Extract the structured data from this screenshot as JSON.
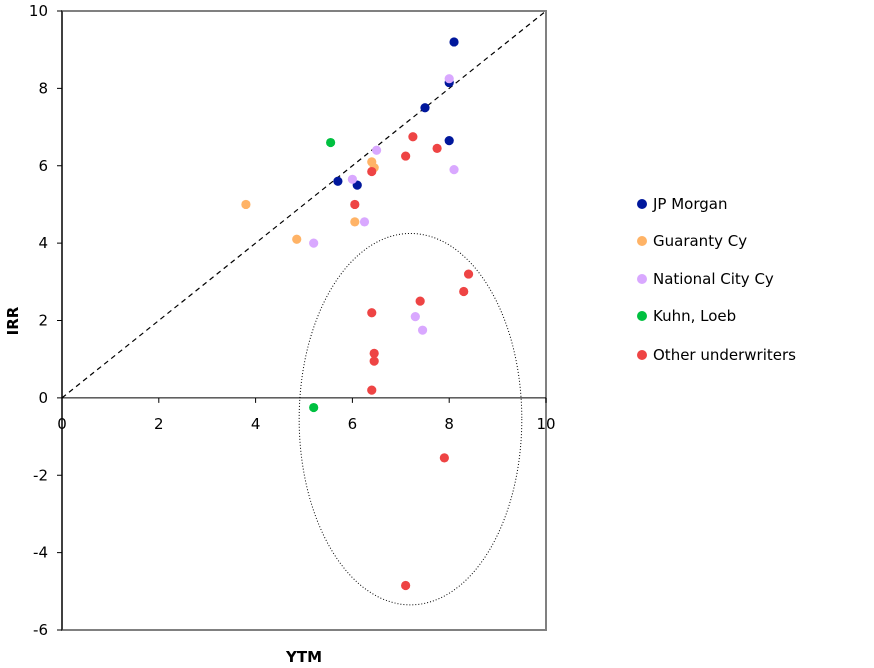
{
  "chart_data": {
    "type": "scatter",
    "xlabel": "YTM",
    "ylabel": "IRR",
    "xlim": [
      0,
      10
    ],
    "ylim": [
      -6,
      10
    ],
    "xticks": [
      "0",
      "2",
      "4",
      "6",
      "8",
      "10"
    ],
    "yticks": [
      "-6",
      "-4",
      "-2",
      "0",
      "2",
      "4",
      "6",
      "8",
      "10"
    ],
    "grid": false,
    "legend_position": "right",
    "reference_line": {
      "style": "dashed",
      "from": [
        0,
        0
      ],
      "to": [
        10,
        10
      ]
    },
    "highlight_ellipse": {
      "style": "dotted",
      "center": [
        7.2,
        -0.55
      ],
      "radius_x": 2.3,
      "radius_y": 4.8
    },
    "series": [
      {
        "name": "JP Morgan",
        "color": "#00179C",
        "points": [
          [
            8.1,
            9.2
          ],
          [
            8.0,
            8.15
          ],
          [
            7.5,
            7.5
          ],
          [
            8.0,
            6.65
          ],
          [
            5.7,
            5.6
          ],
          [
            6.1,
            5.5
          ]
        ]
      },
      {
        "name": "Guaranty Cy",
        "color": "#FFB366",
        "points": [
          [
            3.8,
            5.0
          ],
          [
            4.85,
            4.1
          ],
          [
            6.05,
            4.55
          ],
          [
            6.4,
            6.1
          ],
          [
            6.45,
            5.95
          ]
        ]
      },
      {
        "name": "National City Cy",
        "color": "#D9A8FF",
        "points": [
          [
            8.0,
            8.25
          ],
          [
            6.5,
            6.4
          ],
          [
            6.0,
            5.65
          ],
          [
            8.1,
            5.9
          ],
          [
            6.25,
            4.55
          ],
          [
            5.2,
            4.0
          ],
          [
            7.3,
            2.1
          ],
          [
            7.45,
            1.75
          ]
        ]
      },
      {
        "name": "Kuhn, Loeb",
        "color": "#00C040",
        "points": [
          [
            5.55,
            6.6
          ],
          [
            5.2,
            -0.25
          ]
        ]
      },
      {
        "name": "Other underwriters",
        "color": "#EE4444",
        "points": [
          [
            7.25,
            6.75
          ],
          [
            7.75,
            6.45
          ],
          [
            7.1,
            6.25
          ],
          [
            6.4,
            5.85
          ],
          [
            6.05,
            5.0
          ],
          [
            8.4,
            3.2
          ],
          [
            8.3,
            2.75
          ],
          [
            7.4,
            2.5
          ],
          [
            6.4,
            2.2
          ],
          [
            6.45,
            1.15
          ],
          [
            6.45,
            0.95
          ],
          [
            6.4,
            0.2
          ],
          [
            7.9,
            -1.55
          ],
          [
            7.1,
            -4.85
          ]
        ]
      }
    ]
  }
}
